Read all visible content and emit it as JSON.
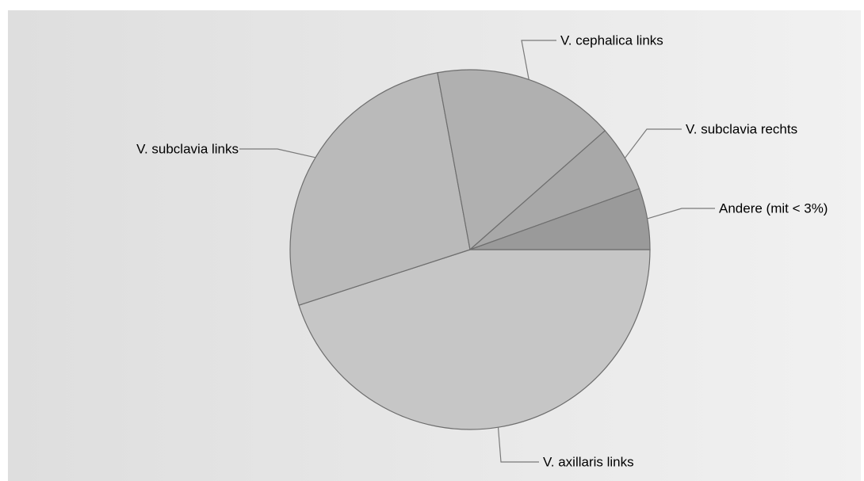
{
  "chart_data": {
    "type": "pie",
    "title": "",
    "slices": [
      {
        "label": "V. axillaris links",
        "value": 45.0,
        "color": "#c6c6c6"
      },
      {
        "label": "V. subclavia links",
        "value": 27.1,
        "color": "#bababa"
      },
      {
        "label": "V. cephalica links",
        "value": 16.4,
        "color": "#b0b0b0"
      },
      {
        "label": "V. subclavia rechts",
        "value": 6.0,
        "color": "#a8a8a8"
      },
      {
        "label": "Andere (mit < 3%)",
        "value": 5.5,
        "color": "#9a9a9a"
      }
    ],
    "start": "3 o'clock",
    "direction": "clockwise",
    "legend": "none"
  }
}
